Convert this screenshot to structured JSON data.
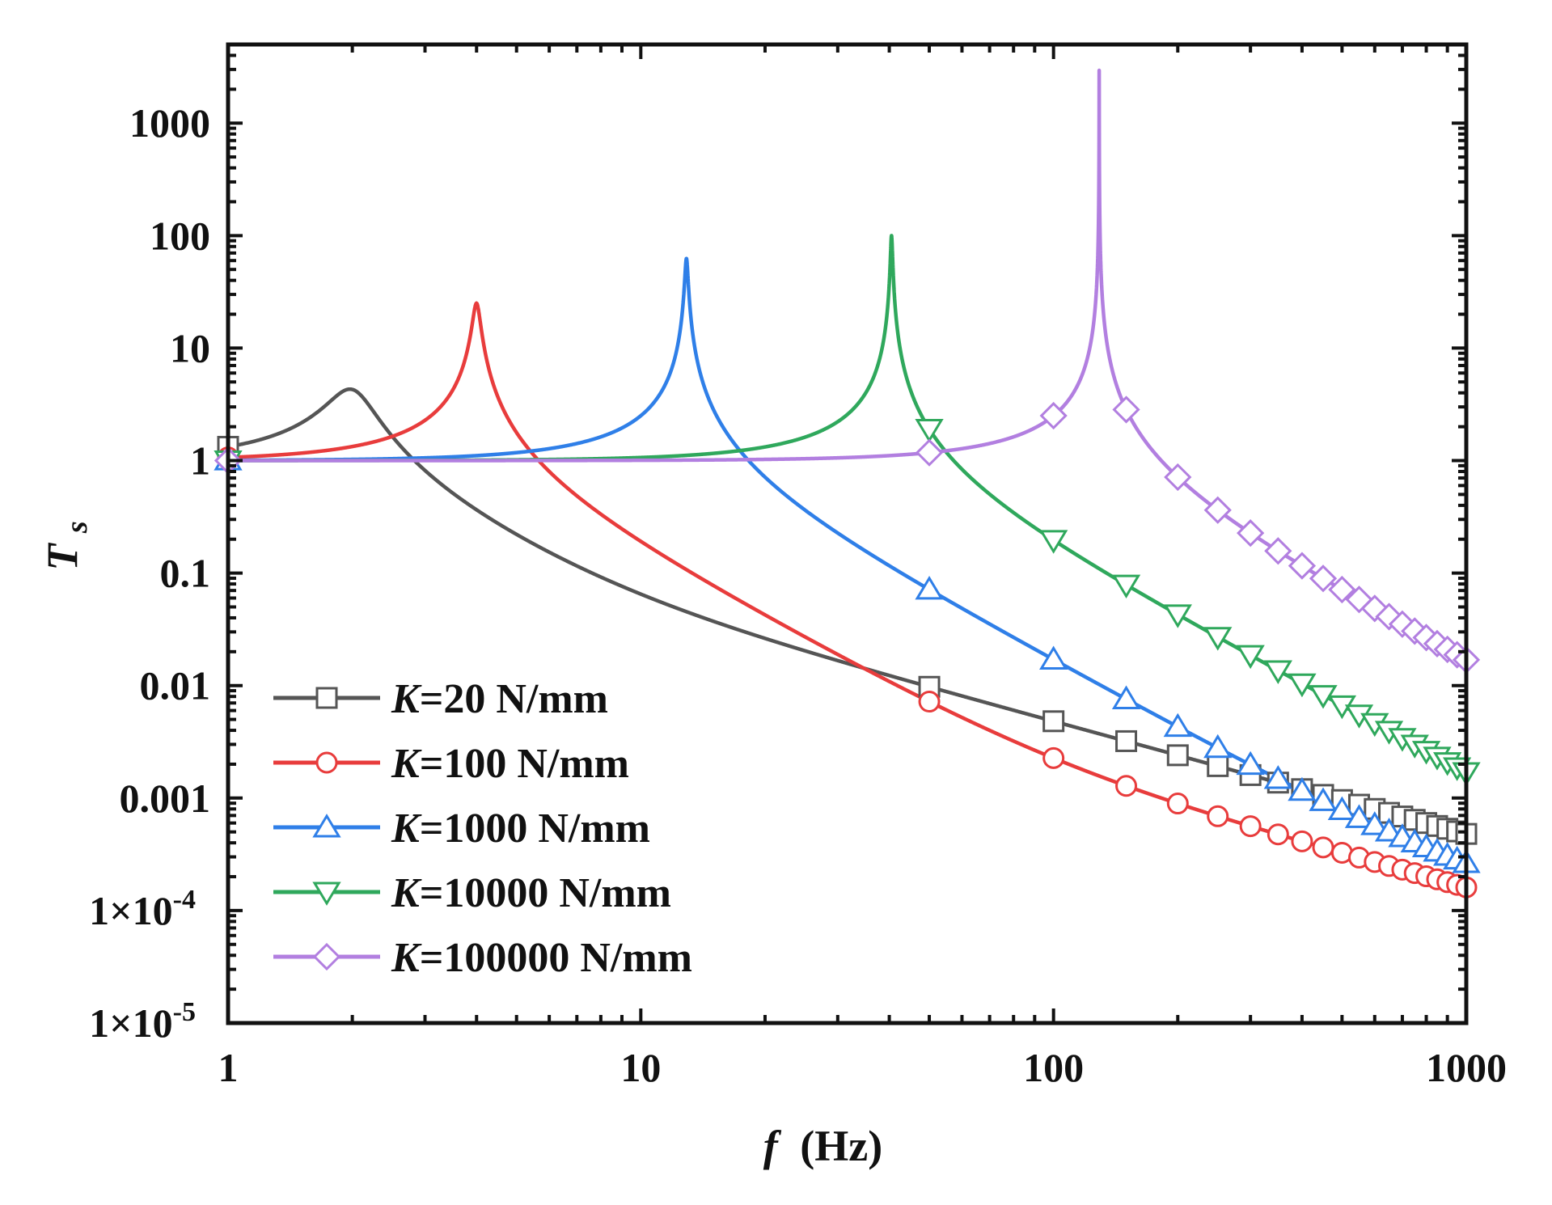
{
  "chart_data": {
    "type": "line",
    "title": "",
    "xlabel": "f",
    "xlabel_unit": "(Hz)",
    "ylabel": "T",
    "ylabel_sub": "s",
    "xscale": "log",
    "yscale": "log",
    "xlim": [
      1,
      1000
    ],
    "ylim": [
      1e-05,
      5000
    ],
    "x_ticks": [
      {
        "value": 1,
        "label": "1"
      },
      {
        "value": 10,
        "label": "10"
      },
      {
        "value": 100,
        "label": "100"
      },
      {
        "value": 1000,
        "label": "1000"
      }
    ],
    "y_ticks": [
      {
        "value": 1e-05,
        "label": "1×10",
        "exp": "-5"
      },
      {
        "value": 0.0001,
        "label": "1×10",
        "exp": "-4"
      },
      {
        "value": 0.001,
        "label": "0.001"
      },
      {
        "value": 0.01,
        "label": "0.01"
      },
      {
        "value": 0.1,
        "label": "0.1"
      },
      {
        "value": 1,
        "label": "1"
      },
      {
        "value": 10,
        "label": "10"
      },
      {
        "value": 100,
        "label": "100"
      },
      {
        "value": 1000,
        "label": "1000"
      }
    ],
    "legend_position": "bottom-left",
    "grid": false,
    "marker_freqs": [
      50,
      100,
      150,
      200,
      250,
      300,
      350,
      400,
      450,
      500,
      550,
      600,
      650,
      700,
      750,
      800,
      850,
      900,
      950,
      1000
    ],
    "series": [
      {
        "name": "K=20 N/mm",
        "k_prefix": "K",
        "k_text": "=20 N/mm",
        "color": "#555555",
        "marker": "square",
        "f0": 2.0,
        "zeta": 0.12,
        "floor": 0.0
      },
      {
        "name": "K=100 N/mm",
        "k_prefix": "K",
        "k_text": "=100 N/mm",
        "color": "#e83c3c",
        "marker": "circle",
        "f0": 4.0,
        "zeta": 0.02,
        "floor": 0.0
      },
      {
        "name": "K=1000 N/mm",
        "k_prefix": "K",
        "k_text": "=1000 N/mm",
        "color": "#2f7fe8",
        "marker": "triangle-up",
        "f0": 12.9,
        "zeta": 0.008,
        "floor": 0.0
      },
      {
        "name": "K=10000 N/mm",
        "k_prefix": "K",
        "k_text": "=10000 N/mm",
        "color": "#2fa85c",
        "marker": "triangle-down",
        "f0": 40.5,
        "zeta": 0.005,
        "floor": 0.0
      },
      {
        "name": "K=100000 N/mm",
        "k_prefix": "K",
        "k_text": "=100000 N/mm",
        "color": "#b27fe0",
        "marker": "diamond",
        "f0": 129.0,
        "zeta": 0.00017,
        "floor": 0.0
      }
    ]
  }
}
